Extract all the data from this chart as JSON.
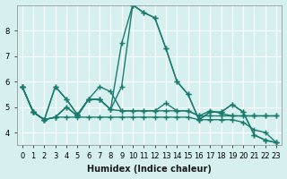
{
  "background_color": "#d6f0f0",
  "grid_color": "#ffffff",
  "line_color": "#1a7a6e",
  "x_label": "Humidex (Indice chaleur)",
  "x_ticks": [
    0,
    1,
    2,
    3,
    4,
    5,
    6,
    7,
    8,
    9,
    10,
    11,
    12,
    13,
    14,
    15,
    16,
    17,
    18,
    19,
    20,
    21,
    22,
    23
  ],
  "ylim": [
    3.5,
    9.0
  ],
  "y_ticks": [
    4,
    5,
    6,
    7,
    8
  ],
  "lines": [
    [
      5.8,
      4.8,
      4.5,
      5.8,
      5.3,
      4.7,
      5.3,
      5.3,
      4.9,
      5.8,
      9.0,
      8.7,
      8.5,
      7.3,
      6.0,
      5.5,
      4.5,
      4.8,
      4.8,
      5.1,
      4.8,
      3.9,
      3.7,
      3.6
    ],
    [
      5.8,
      4.8,
      4.5,
      5.8,
      5.3,
      4.7,
      5.3,
      5.3,
      4.9,
      7.5,
      9.0,
      8.7,
      8.5,
      7.3,
      6.0,
      5.5,
      4.5,
      4.8,
      4.8,
      5.1,
      4.8,
      3.9,
      3.7,
      3.6
    ],
    [
      5.8,
      4.8,
      4.5,
      4.6,
      5.0,
      4.65,
      5.3,
      5.3,
      4.9,
      4.85,
      4.85,
      4.85,
      4.85,
      4.85,
      4.85,
      4.85,
      4.65,
      4.65,
      4.65,
      4.65,
      4.65,
      4.65,
      4.65,
      4.65
    ],
    [
      5.8,
      4.8,
      4.5,
      4.6,
      5.0,
      4.65,
      5.3,
      5.8,
      5.6,
      4.85,
      4.85,
      4.85,
      4.85,
      5.15,
      4.85,
      4.85,
      4.65,
      4.85,
      4.75,
      4.65,
      4.65,
      4.65,
      4.65,
      4.65
    ],
    [
      5.8,
      4.8,
      4.5,
      4.6,
      4.6,
      4.6,
      4.6,
      4.6,
      4.6,
      4.6,
      4.6,
      4.6,
      4.6,
      4.6,
      4.6,
      4.6,
      4.5,
      4.5,
      4.5,
      4.5,
      4.4,
      4.1,
      4.0,
      3.6
    ]
  ]
}
